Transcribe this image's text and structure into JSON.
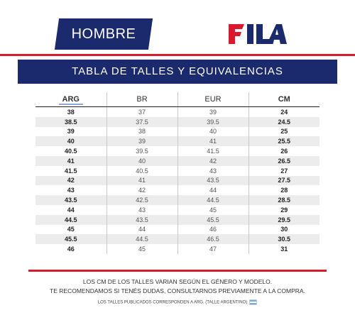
{
  "banner": {
    "label": "HOMBRE"
  },
  "logo": {
    "text": "FILA",
    "colors": {
      "blue": "#1a2a6c",
      "red": "#d8192e"
    }
  },
  "title": "TABLA DE TALLES Y EQUIVALENCIAS",
  "table": {
    "headers": [
      "ARG",
      "BR",
      "EUR",
      "CM"
    ],
    "rows": [
      [
        "38",
        "37",
        "39",
        "24"
      ],
      [
        "38.5",
        "37.5",
        "39.5",
        "24.5"
      ],
      [
        "39",
        "38",
        "40",
        "25"
      ],
      [
        "40",
        "39",
        "41",
        "25.5"
      ],
      [
        "40.5",
        "39.5",
        "41.5",
        "26"
      ],
      [
        "41",
        "40",
        "42",
        "26.5"
      ],
      [
        "41.5",
        "40.5",
        "43",
        "27"
      ],
      [
        "42",
        "41",
        "43.5",
        "27.5"
      ],
      [
        "43",
        "42",
        "44",
        "28"
      ],
      [
        "43.5",
        "42.5",
        "44.5",
        "28.5"
      ],
      [
        "44",
        "43",
        "45",
        "29"
      ],
      [
        "44.5",
        "43.5",
        "45.5",
        "29.5"
      ],
      [
        "45",
        "44",
        "46",
        "30"
      ],
      [
        "45.5",
        "44.5",
        "46.5",
        "30.5"
      ],
      [
        "46",
        "45",
        "47",
        "31"
      ]
    ]
  },
  "footer": {
    "line1": "LOS CM DE LOS TALLES VARIAN SEGÚN EL GÉNERO Y MODELO.",
    "line2": "TE RECOMENDAMOS SI TENÉS DUDAS, CONSULTARNOS PREVIAMENTE A LA COMPRA.",
    "note": "LOS TALLES PUBLICADOS CORRESPONDEN A ARG. (TALLE ARGENTINO)",
    "flag_icon": "argentina-flag-icon"
  }
}
